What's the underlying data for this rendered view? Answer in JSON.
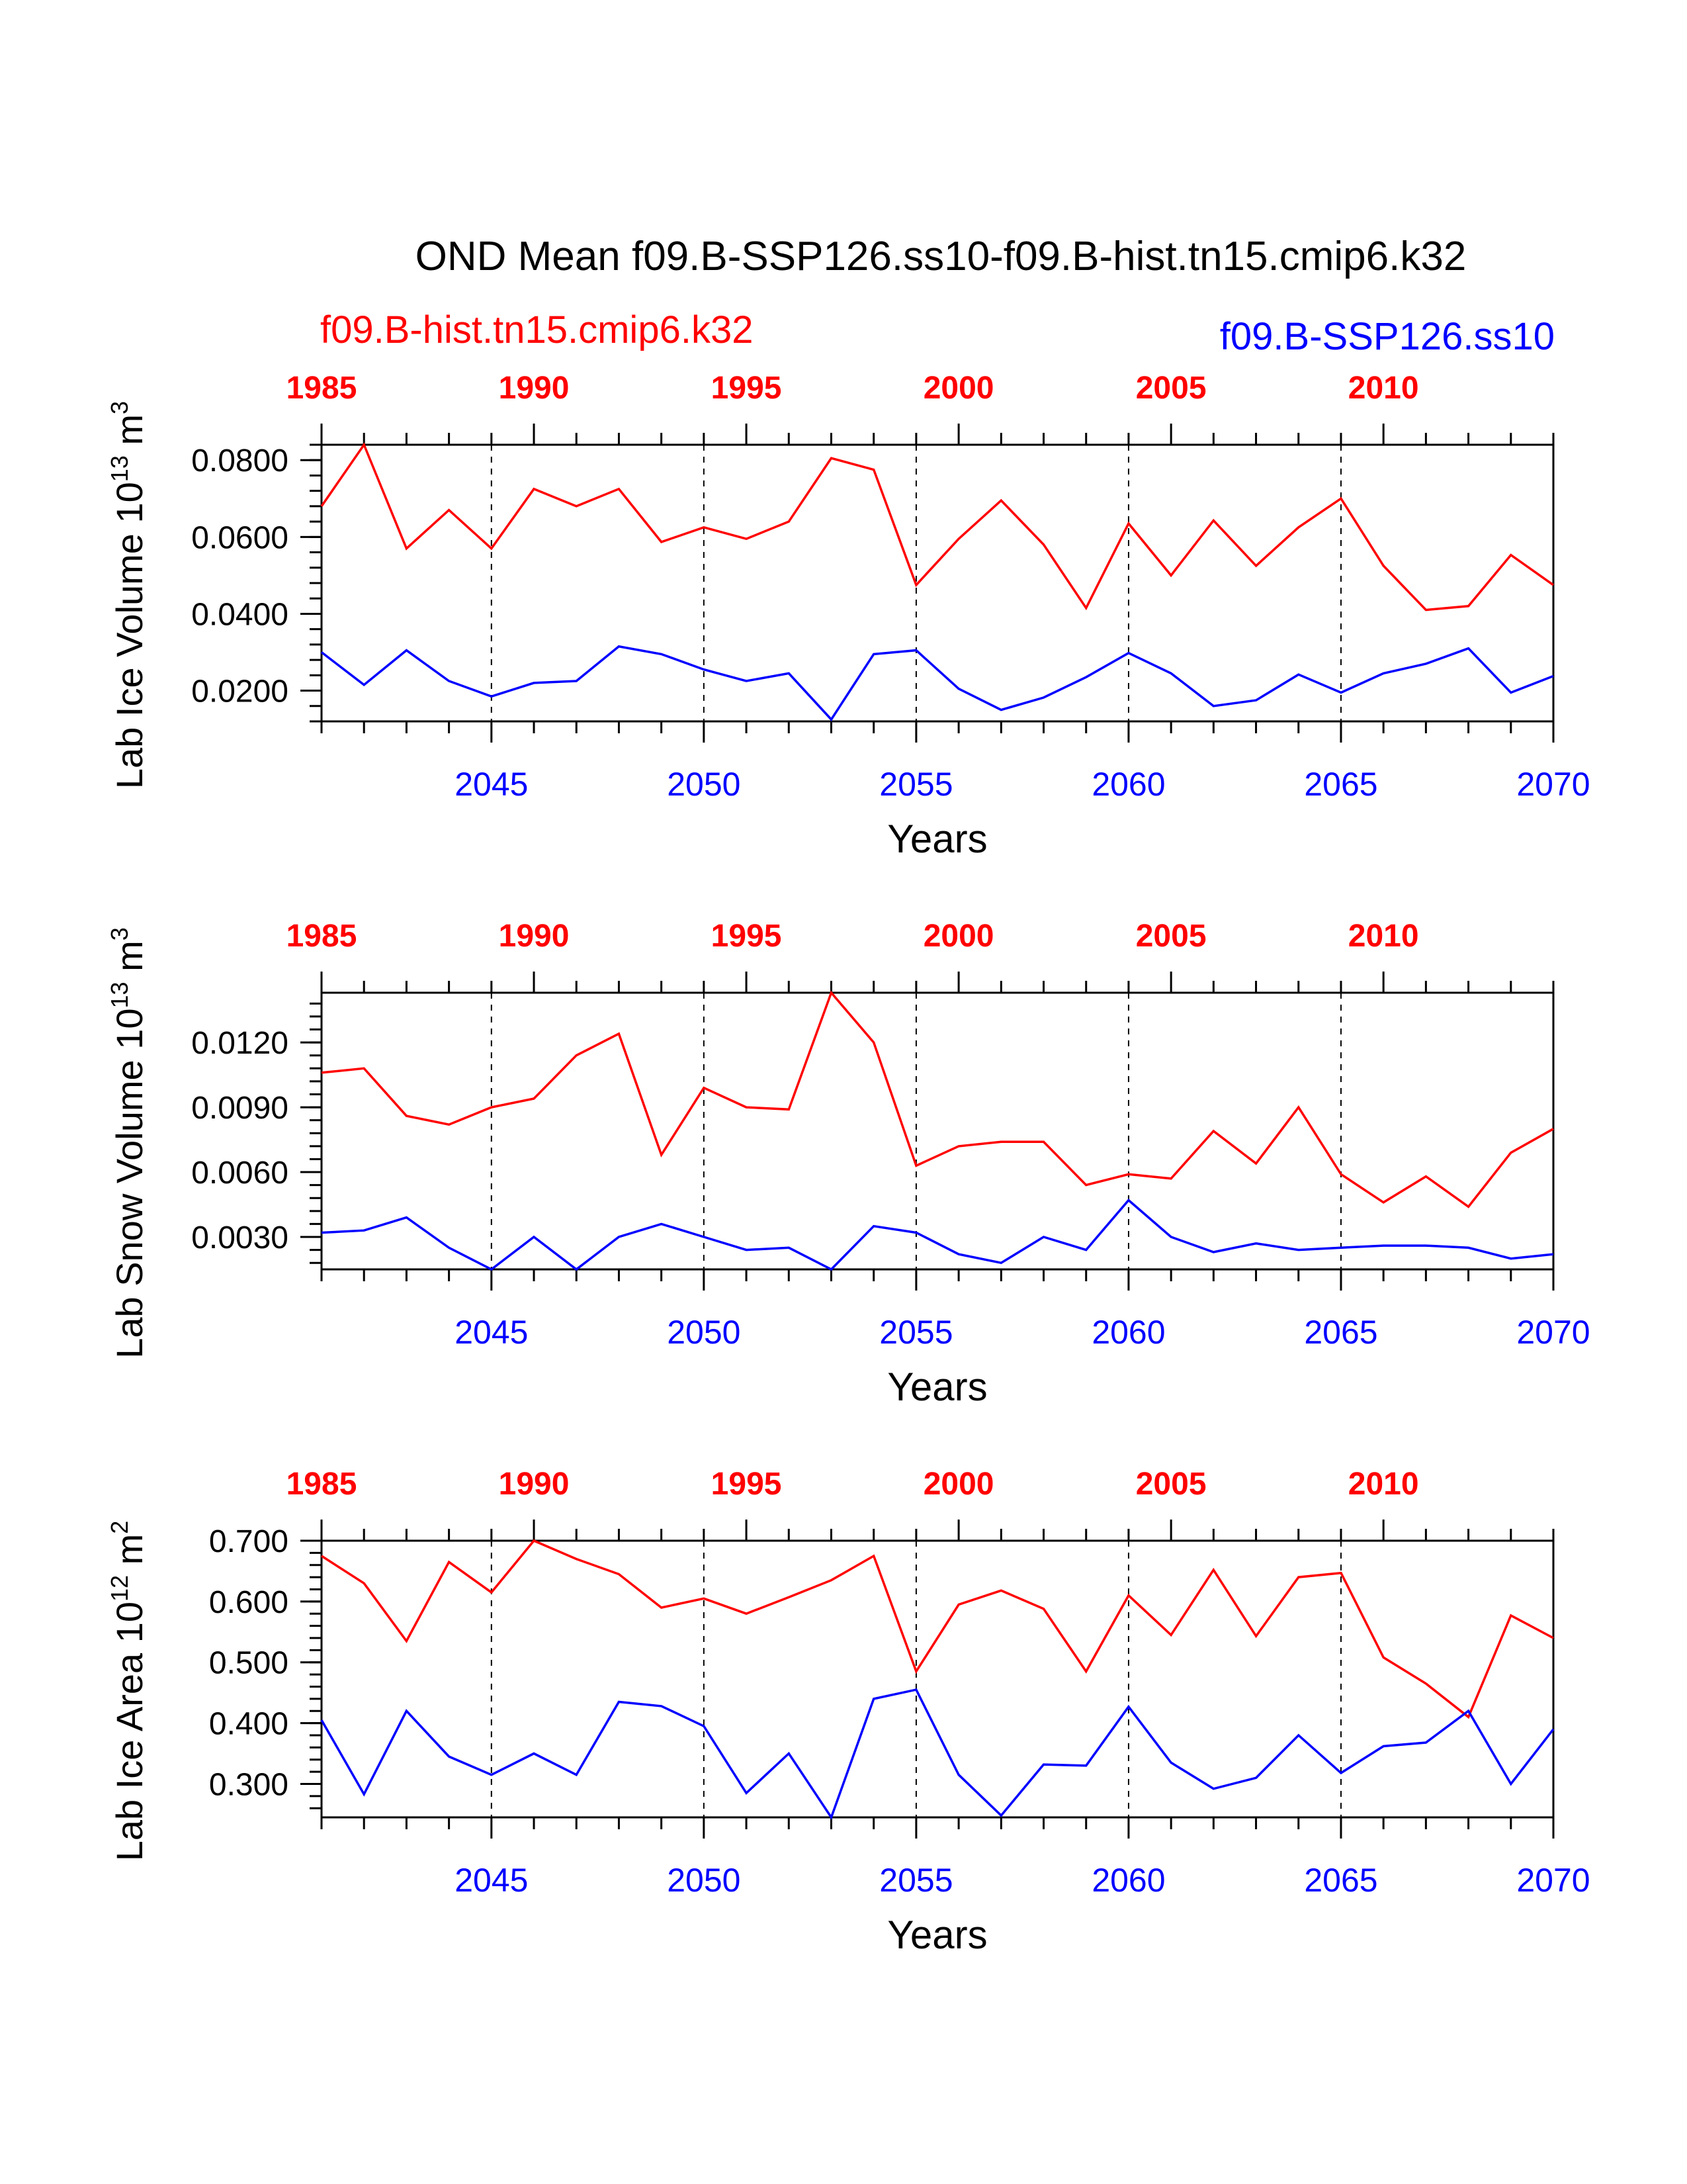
{
  "title": "OND Mean f09.B-SSP126.ss10-f09.B-hist.tn15.cmip6.k32",
  "colors": {
    "hist": "#ff0000",
    "ssp": "#0000ff",
    "axis": "#000000"
  },
  "series_labels": {
    "hist": "f09.B-hist.tn15.cmip6.k32",
    "ssp": "f09.B-SSP126.ss10"
  },
  "chart_data": [
    {
      "type": "line",
      "ylabel_main": "Lab Ice Volume 10",
      "ylabel_sup": "13",
      "ylabel_unit": " m",
      "ylabel_unit_sup": "3",
      "xlabel": "Years",
      "yticks": [
        "0.0200",
        "0.0400",
        "0.0600",
        "0.0800"
      ],
      "ytick_values": [
        0.02,
        0.04,
        0.06,
        0.08
      ],
      "ylim": [
        0.012,
        0.084
      ],
      "x_bottom_ticks": [
        "2045",
        "2050",
        "2055",
        "2060",
        "2065",
        "2070"
      ],
      "x_top_ticks": [
        "1985",
        "1990",
        "1995",
        "2000",
        "2005",
        "2010"
      ],
      "series": [
        {
          "name": "f09.B-hist.tn15.cmip6.k32",
          "color": "red",
          "values": [
            0.068,
            0.084,
            0.057,
            0.067,
            0.057,
            0.0725,
            0.068,
            0.0725,
            0.0587,
            0.0625,
            0.0595,
            0.064,
            0.0805,
            0.0775,
            0.0475,
            0.0595,
            0.0695,
            0.058,
            0.0415,
            0.0635,
            0.05,
            0.0643,
            0.0525,
            0.0625,
            0.07,
            0.0525,
            0.041,
            0.042,
            0.0553,
            0.0475
          ]
        },
        {
          "name": "f09.B-SSP126.ss10",
          "color": "blue",
          "values": [
            0.03,
            0.0215,
            0.0305,
            0.0225,
            0.0185,
            0.022,
            0.0225,
            0.0315,
            0.0295,
            0.0255,
            0.0225,
            0.0245,
            0.0125,
            0.0295,
            0.0305,
            0.0205,
            0.015,
            0.0182,
            0.0235,
            0.0298,
            0.0245,
            0.016,
            0.0175,
            0.0242,
            0.0195,
            0.0245,
            0.027,
            0.031,
            0.0195,
            0.0238
          ]
        }
      ]
    },
    {
      "type": "line",
      "ylabel_main": "Lab Snow Volume 10",
      "ylabel_sup": "13",
      "ylabel_unit": " m",
      "ylabel_unit_sup": "3",
      "xlabel": "Years",
      "yticks": [
        "0.0030",
        "0.0060",
        "0.0090",
        "0.0120"
      ],
      "ytick_values": [
        0.003,
        0.006,
        0.009,
        0.012
      ],
      "ylim": [
        0.0015,
        0.0143
      ],
      "x_bottom_ticks": [
        "2045",
        "2050",
        "2055",
        "2060",
        "2065",
        "2070"
      ],
      "x_top_ticks": [
        "1985",
        "1990",
        "1995",
        "2000",
        "2005",
        "2010"
      ],
      "series": [
        {
          "name": "f09.B-hist.tn15.cmip6.k32",
          "color": "red",
          "values": [
            0.0106,
            0.0108,
            0.0086,
            0.0082,
            0.009,
            0.0094,
            0.0114,
            0.0124,
            0.0068,
            0.0099,
            0.009,
            0.0089,
            0.0143,
            0.012,
            0.0063,
            0.0072,
            0.0074,
            0.0074,
            0.0054,
            0.0059,
            0.0057,
            0.0079,
            0.0064,
            0.009,
            0.0059,
            0.0046,
            0.0058,
            0.0044,
            0.0069,
            0.008
          ]
        },
        {
          "name": "f09.B-SSP126.ss10",
          "color": "blue",
          "values": [
            0.0032,
            0.0033,
            0.0039,
            0.0025,
            0.0015,
            0.003,
            0.0015,
            0.003,
            0.0036,
            0.003,
            0.0024,
            0.0025,
            0.0015,
            0.0035,
            0.0032,
            0.0022,
            0.0018,
            0.003,
            0.0024,
            0.0047,
            0.003,
            0.0023,
            0.0027,
            0.0024,
            0.0025,
            0.0026,
            0.0026,
            0.0025,
            0.002,
            0.0022
          ]
        }
      ]
    },
    {
      "type": "line",
      "ylabel_main": "Lab Ice Area 10",
      "ylabel_sup": "12",
      "ylabel_unit": " m",
      "ylabel_unit_sup": "2",
      "xlabel": "Years",
      "yticks": [
        "0.300",
        "0.400",
        "0.500",
        "0.600",
        "0.700"
      ],
      "ytick_values": [
        0.3,
        0.4,
        0.5,
        0.6,
        0.7
      ],
      "ylim": [
        0.245,
        0.7
      ],
      "x_bottom_ticks": [
        "2045",
        "2050",
        "2055",
        "2060",
        "2065",
        "2070"
      ],
      "x_top_ticks": [
        "1985",
        "1990",
        "1995",
        "2000",
        "2005",
        "2010"
      ],
      "series": [
        {
          "name": "f09.B-hist.tn15.cmip6.k32",
          "color": "red",
          "values": [
            0.675,
            0.63,
            0.535,
            0.665,
            0.615,
            0.7,
            0.67,
            0.645,
            0.59,
            0.605,
            0.58,
            0.607,
            0.635,
            0.675,
            0.485,
            0.595,
            0.618,
            0.588,
            0.485,
            0.61,
            0.545,
            0.652,
            0.543,
            0.64,
            0.647,
            0.508,
            0.465,
            0.41,
            0.577,
            0.54
          ]
        },
        {
          "name": "f09.B-SSP126.ss10",
          "color": "blue",
          "values": [
            0.405,
            0.283,
            0.42,
            0.345,
            0.315,
            0.35,
            0.315,
            0.435,
            0.428,
            0.395,
            0.285,
            0.35,
            0.245,
            0.44,
            0.455,
            0.315,
            0.248,
            0.332,
            0.33,
            0.427,
            0.335,
            0.292,
            0.31,
            0.38,
            0.318,
            0.362,
            0.368,
            0.42,
            0.3,
            0.39
          ]
        }
      ]
    }
  ]
}
